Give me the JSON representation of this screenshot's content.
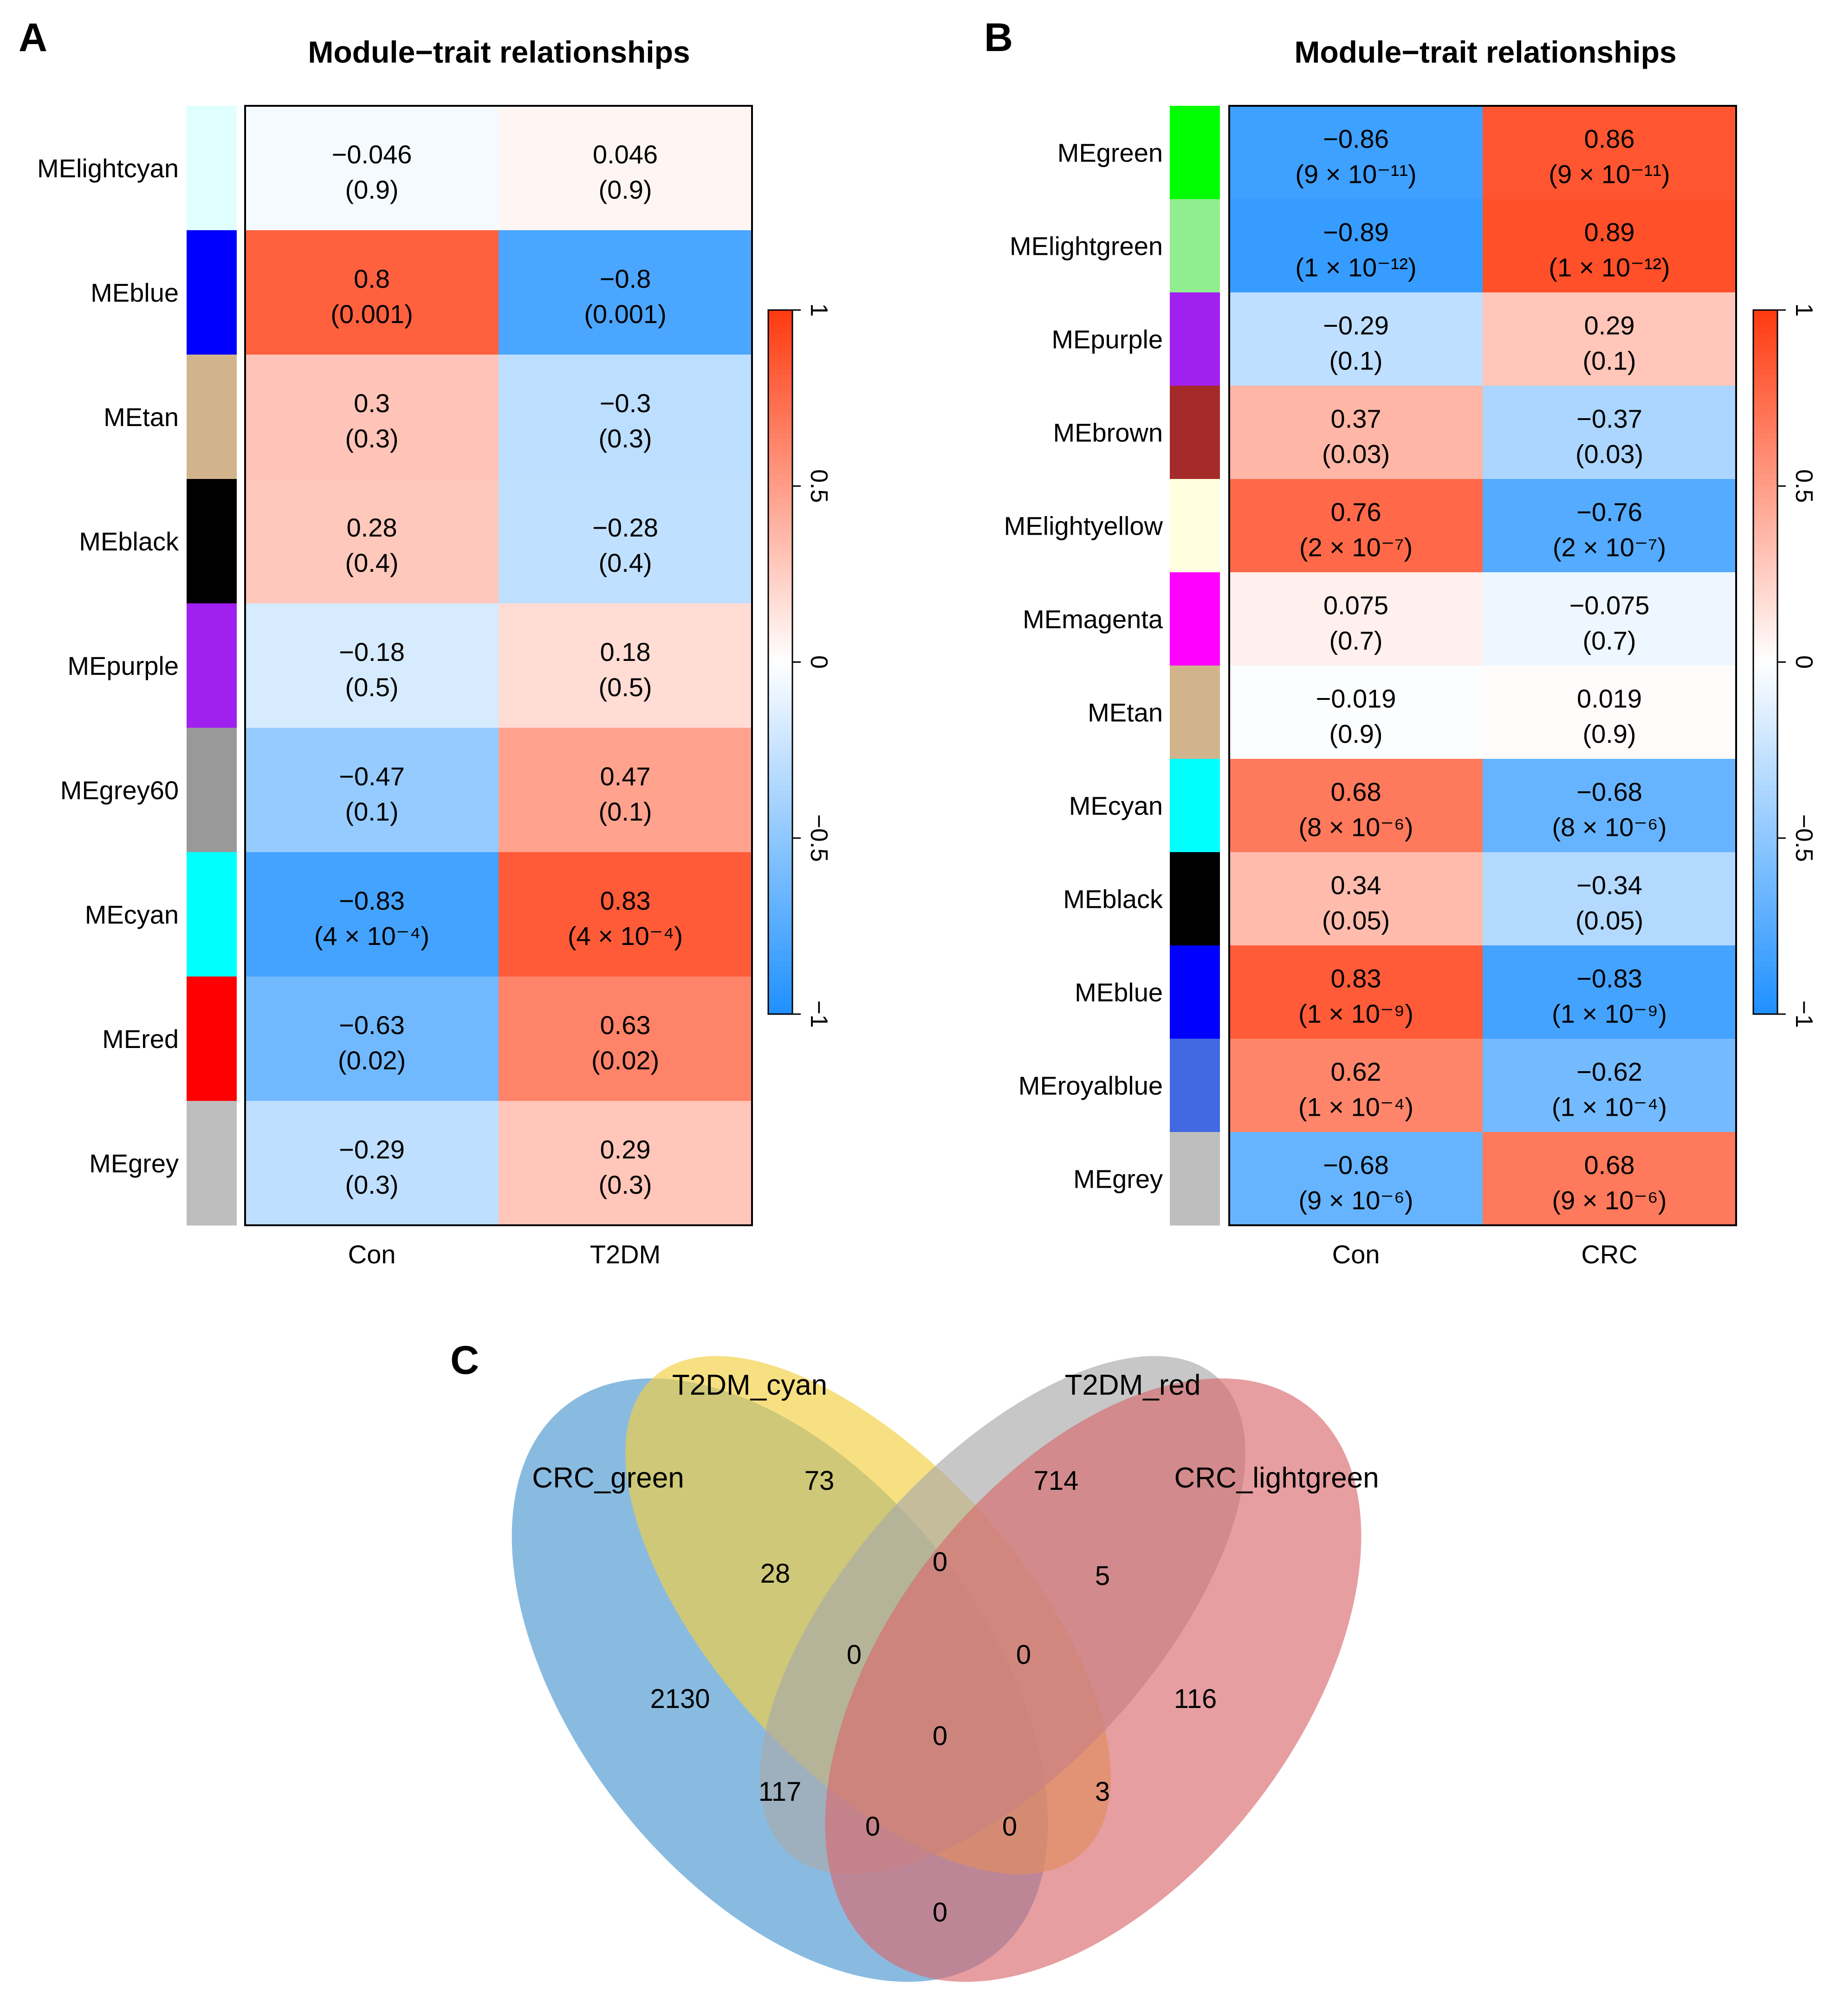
{
  "colors": {
    "neg": "#1E90FF",
    "zero": "#FFFFFF",
    "pos": "#FF3A0F"
  },
  "chart_data": [
    {
      "panel": "A",
      "type": "heatmap",
      "title": "Module−trait relationships",
      "columns": [
        "Con",
        "T2DM"
      ],
      "colorbar": {
        "min": -1,
        "max": 1,
        "ticks": [
          "1",
          "0.5",
          "0",
          "−0.5",
          "−1"
        ]
      },
      "rows": [
        {
          "label": "MElightcyan",
          "color": "#E0FFFF",
          "values": [
            -0.046,
            0.046
          ],
          "text": [
            "−0.046",
            "0.046"
          ],
          "p": [
            "(0.9)",
            "(0.9)"
          ]
        },
        {
          "label": "MEblue",
          "color": "#0000FF",
          "values": [
            0.8,
            -0.8
          ],
          "text": [
            "0.8",
            "−0.8"
          ],
          "p": [
            "(0.001)",
            "(0.001)"
          ]
        },
        {
          "label": "MEtan",
          "color": "#D2B48C",
          "values": [
            0.3,
            -0.3
          ],
          "text": [
            "0.3",
            "−0.3"
          ],
          "p": [
            "(0.3)",
            "(0.3)"
          ]
        },
        {
          "label": "MEblack",
          "color": "#000000",
          "values": [
            0.28,
            -0.28
          ],
          "text": [
            "0.28",
            "−0.28"
          ],
          "p": [
            "(0.4)",
            "(0.4)"
          ]
        },
        {
          "label": "MEpurple",
          "color": "#A020F0",
          "values": [
            -0.18,
            0.18
          ],
          "text": [
            "−0.18",
            "0.18"
          ],
          "p": [
            "(0.5)",
            "(0.5)"
          ]
        },
        {
          "label": "MEgrey60",
          "color": "#999999",
          "values": [
            -0.47,
            0.47
          ],
          "text": [
            "−0.47",
            "0.47"
          ],
          "p": [
            "(0.1)",
            "(0.1)"
          ]
        },
        {
          "label": "MEcyan",
          "color": "#00FFFF",
          "values": [
            -0.83,
            0.83
          ],
          "text": [
            "−0.83",
            "0.83"
          ],
          "p": [
            "(4 × 10⁻⁴)",
            "(4 × 10⁻⁴)"
          ]
        },
        {
          "label": "MEred",
          "color": "#FF0000",
          "values": [
            -0.63,
            0.63
          ],
          "text": [
            "−0.63",
            "0.63"
          ],
          "p": [
            "(0.02)",
            "(0.02)"
          ]
        },
        {
          "label": "MEgrey",
          "color": "#BEBEBE",
          "values": [
            -0.29,
            0.29
          ],
          "text": [
            "−0.29",
            "0.29"
          ],
          "p": [
            "(0.3)",
            "(0.3)"
          ]
        }
      ]
    },
    {
      "panel": "B",
      "type": "heatmap",
      "title": "Module−trait relationships",
      "columns": [
        "Con",
        "CRC"
      ],
      "colorbar": {
        "min": -1,
        "max": 1,
        "ticks": [
          "1",
          "0.5",
          "0",
          "−0.5",
          "−1"
        ]
      },
      "rows": [
        {
          "label": "MEgreen",
          "color": "#00FF00",
          "values": [
            -0.86,
            0.86
          ],
          "text": [
            "−0.86",
            "0.86"
          ],
          "p": [
            "(9 × 10⁻¹¹)",
            "(9 × 10⁻¹¹)"
          ]
        },
        {
          "label": "MElightgreen",
          "color": "#90EE90",
          "values": [
            -0.89,
            0.89
          ],
          "text": [
            "−0.89",
            "0.89"
          ],
          "p": [
            "(1 × 10⁻¹²)",
            "(1 × 10⁻¹²)"
          ]
        },
        {
          "label": "MEpurple",
          "color": "#A020F0",
          "values": [
            -0.29,
            0.29
          ],
          "text": [
            "−0.29",
            "0.29"
          ],
          "p": [
            "(0.1)",
            "(0.1)"
          ]
        },
        {
          "label": "MEbrown",
          "color": "#A52A2A",
          "values": [
            0.37,
            -0.37
          ],
          "text": [
            "0.37",
            "−0.37"
          ],
          "p": [
            "(0.03)",
            "(0.03)"
          ]
        },
        {
          "label": "MElightyellow",
          "color": "#FFFFE0",
          "values": [
            0.76,
            -0.76
          ],
          "text": [
            "0.76",
            "−0.76"
          ],
          "p": [
            "(2 × 10⁻⁷)",
            "(2 × 10⁻⁷)"
          ]
        },
        {
          "label": "MEmagenta",
          "color": "#FF00FF",
          "values": [
            0.075,
            -0.075
          ],
          "text": [
            "0.075",
            "−0.075"
          ],
          "p": [
            "(0.7)",
            "(0.7)"
          ]
        },
        {
          "label": "MEtan",
          "color": "#D2B48C",
          "values": [
            -0.019,
            0.019
          ],
          "text": [
            "−0.019",
            "0.019"
          ],
          "p": [
            "(0.9)",
            "(0.9)"
          ]
        },
        {
          "label": "MEcyan",
          "color": "#00FFFF",
          "values": [
            0.68,
            -0.68
          ],
          "text": [
            "0.68",
            "−0.68"
          ],
          "p": [
            "(8 × 10⁻⁶)",
            "(8 × 10⁻⁶)"
          ]
        },
        {
          "label": "MEblack",
          "color": "#000000",
          "values": [
            0.34,
            -0.34
          ],
          "text": [
            "0.34",
            "−0.34"
          ],
          "p": [
            "(0.05)",
            "(0.05)"
          ]
        },
        {
          "label": "MEblue",
          "color": "#0000FF",
          "values": [
            0.83,
            -0.83
          ],
          "text": [
            "0.83",
            "−0.83"
          ],
          "p": [
            "(1 × 10⁻⁹)",
            "(1 × 10⁻⁹)"
          ]
        },
        {
          "label": "MEroyalblue",
          "color": "#4169E1",
          "values": [
            0.62,
            -0.62
          ],
          "text": [
            "0.62",
            "−0.62"
          ],
          "p": [
            "(1 × 10⁻⁴)",
            "(1 × 10⁻⁴)"
          ]
        },
        {
          "label": "MEgrey",
          "color": "#BEBEBE",
          "values": [
            -0.68,
            0.68
          ],
          "text": [
            "−0.68",
            "0.68"
          ],
          "p": [
            "(9 × 10⁻⁶)",
            "(9 × 10⁻⁶)"
          ]
        }
      ]
    },
    {
      "panel": "C",
      "type": "venn",
      "sets": [
        {
          "name": "CRC_green",
          "color": "#4A97D1"
        },
        {
          "name": "T2DM_cyan",
          "color": "#F2D03F"
        },
        {
          "name": "T2DM_red",
          "color": "#A9A9A9"
        },
        {
          "name": "CRC_lightgreen",
          "color": "#D86A6E"
        }
      ],
      "regions": {
        "CRC_green_only": 2130,
        "T2DM_cyan_only": 73,
        "T2DM_red_only": 714,
        "CRC_lightgreen_only": 116,
        "CRC_green_T2DM_cyan": 28,
        "T2DM_cyan_T2DM_red": 0,
        "T2DM_red_CRC_lightgreen": 5,
        "CRC_green_T2DM_cyan_T2DM_red": 0,
        "T2DM_cyan_T2DM_red_CRC_lightgreen": 0,
        "all_four": 0,
        "CRC_green_T2DM_red": 117,
        "T2DM_cyan_CRC_lightgreen": 3,
        "CRC_green_T2DM_red_CRC_lightgreen": 0,
        "CRC_green_T2DM_cyan_CRC_lightgreen": 0,
        "CRC_green_CRC_lightgreen": 0
      }
    }
  ]
}
